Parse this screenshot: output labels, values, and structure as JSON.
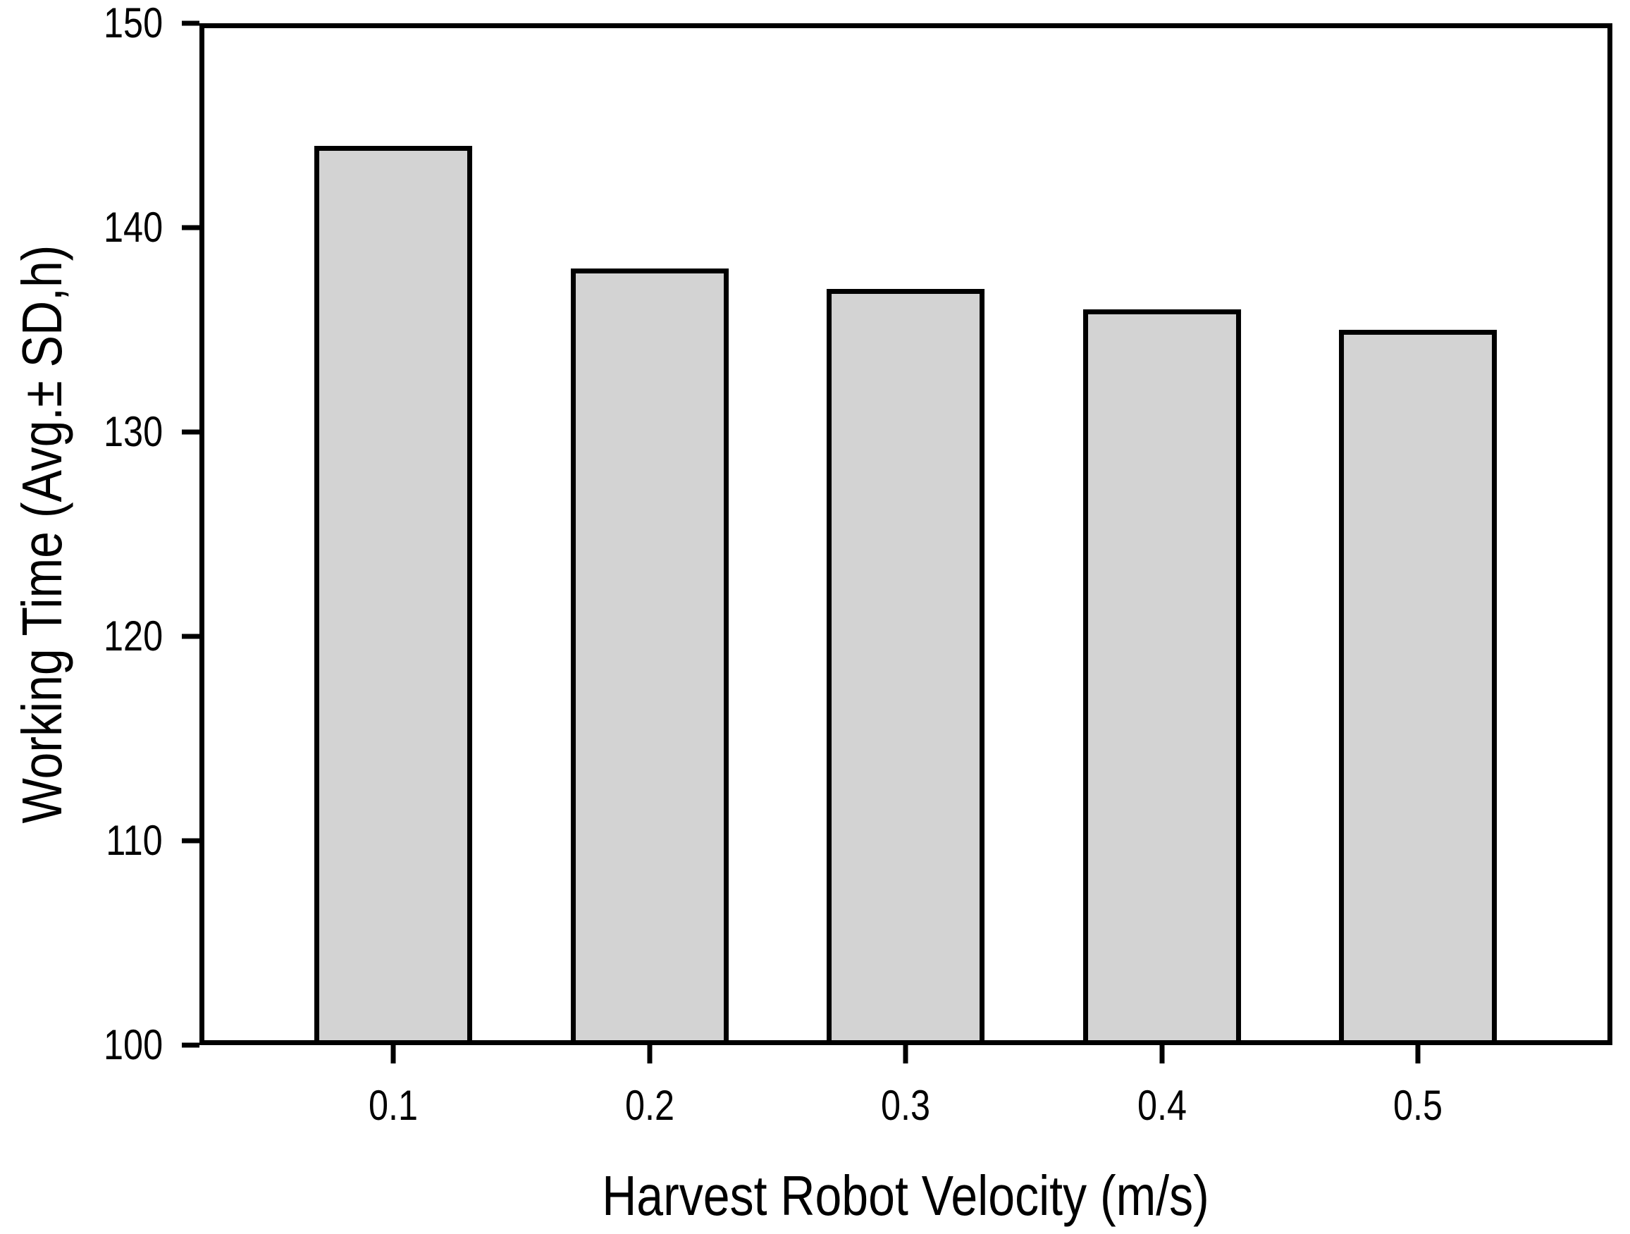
{
  "colors": {
    "background": "#ffffff",
    "line": "#000000",
    "bar_fill": "#d3d3d3"
  },
  "chart_data": {
    "type": "bar",
    "title": "",
    "xlabel": "Harvest Robot Velocity (m/s)",
    "ylabel": "Working Time (Avg.±  SD,h)",
    "categories": [
      "0.1",
      "0.2",
      "0.3",
      "0.4",
      "0.5"
    ],
    "values": [
      144,
      138,
      137,
      136,
      135
    ],
    "ylim": [
      100,
      150
    ],
    "ytick_interval": 10,
    "yticks": [
      "100",
      "110",
      "120",
      "130",
      "140",
      "150"
    ],
    "grid": false,
    "legend_position": "none",
    "frame": "full-box",
    "tick_direction": "out"
  }
}
